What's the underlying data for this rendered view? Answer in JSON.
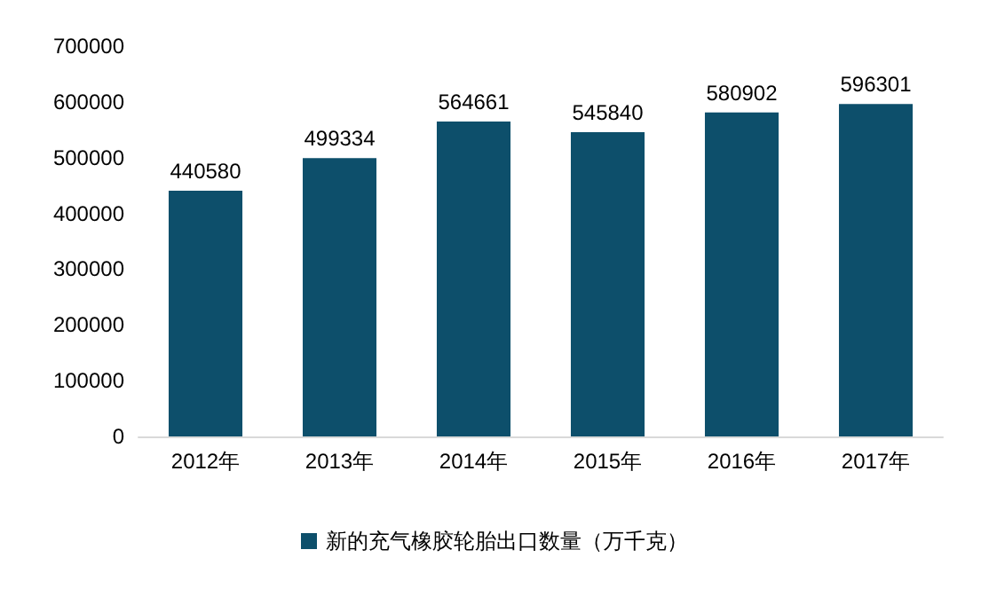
{
  "chart_data": {
    "type": "bar",
    "categories": [
      "2012年",
      "2013年",
      "2014年",
      "2015年",
      "2016年",
      "2017年"
    ],
    "series": [
      {
        "name": "新的充气橡胶轮胎出口数量（万千克）",
        "color": "#0d4f6b",
        "values": [
          440580,
          499334,
          564661,
          545840,
          580902,
          596301
        ]
      }
    ],
    "ylim": [
      0,
      700000
    ],
    "yticks": [
      0,
      100000,
      200000,
      300000,
      400000,
      500000,
      600000,
      700000
    ],
    "grid": false,
    "legend": "bottom",
    "data_labels": true
  }
}
